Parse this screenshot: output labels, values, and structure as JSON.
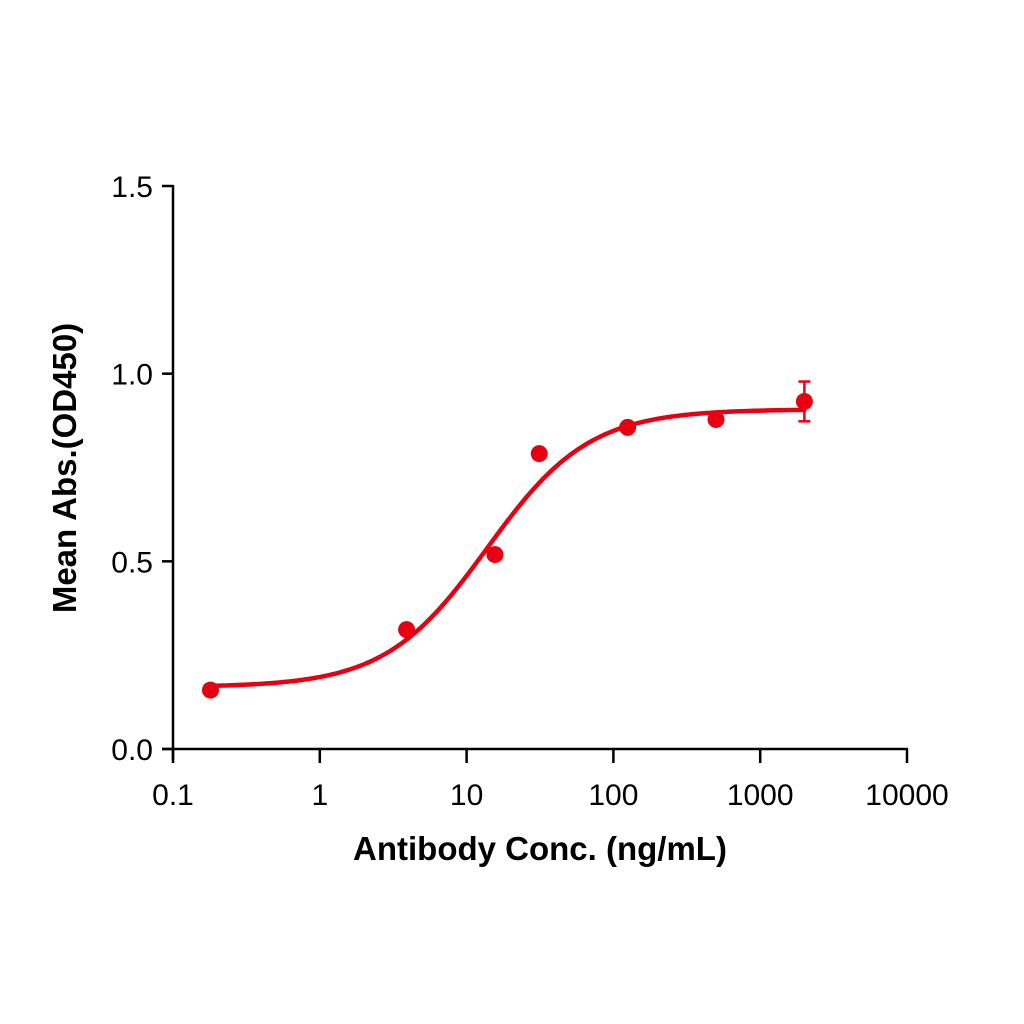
{
  "chart_data": {
    "type": "scatter",
    "title": "",
    "xlabel": "Antibody Conc. (ng/mL)",
    "ylabel": "Mean Abs.(OD450)",
    "xscale": "log",
    "xlim": [
      0.1,
      10000
    ],
    "ylim": [
      0.0,
      1.5
    ],
    "x_ticks": [
      0.1,
      1,
      10,
      100,
      1000,
      10000
    ],
    "x_tick_labels": [
      "0.1",
      "1",
      "10",
      "100",
      "1000",
      "10000"
    ],
    "y_ticks": [
      0.0,
      0.5,
      1.0,
      1.5
    ],
    "y_tick_labels": [
      "0.0",
      "0.5",
      "1.0",
      "1.5"
    ],
    "grid": false,
    "legend": null,
    "series": [
      {
        "name": "Mean Abs.",
        "color": "#E60012",
        "x": [
          0.18,
          3.9,
          15.6,
          31.25,
          125,
          500,
          2000
        ],
        "y": [
          0.157,
          0.318,
          0.518,
          0.787,
          0.857,
          0.878,
          0.926
        ],
        "error": [
          0,
          0,
          0,
          0,
          0,
          0,
          0.053
        ]
      }
    ],
    "fit": {
      "model": "4PL",
      "bottom": 0.165,
      "top": 0.905,
      "ec50": 13.8,
      "hill": 1.25,
      "x_range": [
        0.18,
        2000
      ],
      "color": "#E60012"
    }
  }
}
